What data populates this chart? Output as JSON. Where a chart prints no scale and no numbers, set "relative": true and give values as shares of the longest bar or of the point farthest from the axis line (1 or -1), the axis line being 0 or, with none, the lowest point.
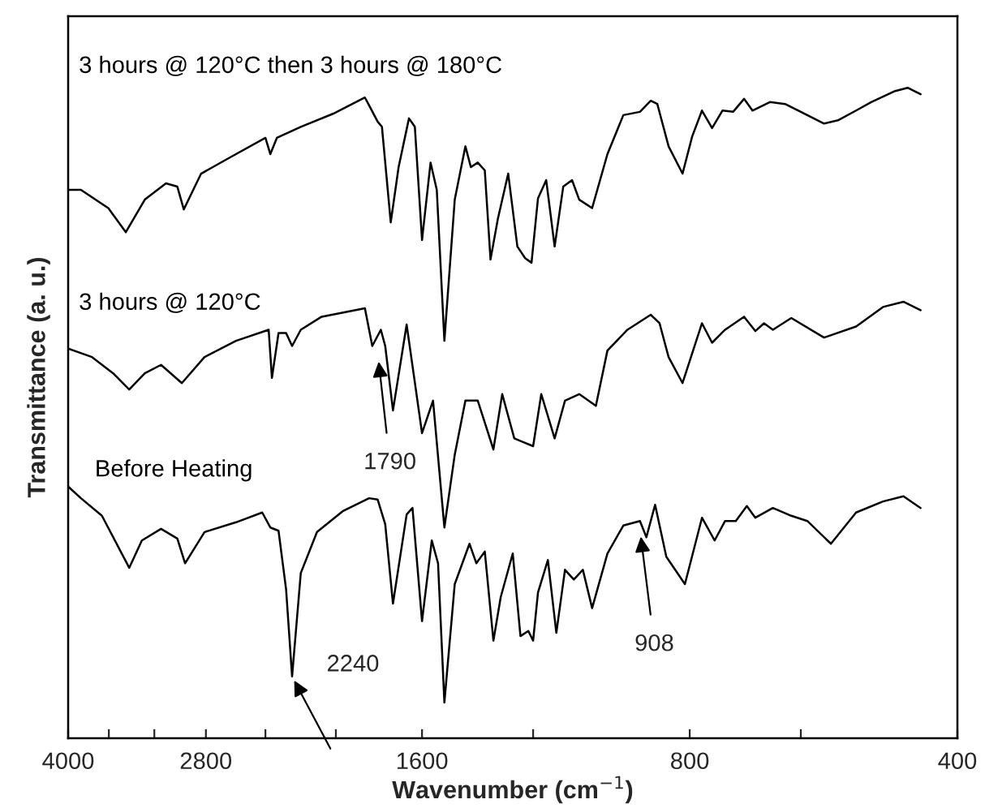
{
  "chart_data": {
    "type": "line",
    "xlabel": "Wavenumber (cm$^{−1}$)",
    "ylabel": "Transmittance (a. u.)",
    "relative": true,
    "log": "x",
    "xlim": [
      4000,
      400
    ],
    "xticks": [
      4000,
      {
        "value": 3600,
        "label": null
      },
      {
        "value": 3200,
        "label": null
      },
      2800,
      {
        "value": 2400,
        "label": null
      },
      {
        "value": 2000,
        "label": null
      },
      1600,
      {
        "value": 1200,
        "label": null
      },
      800,
      {
        "value": 600,
        "label": null
      },
      400
    ],
    "series": [
      {
        "name": "3 hours @ 120°C then 3 hours @ 180°C",
        "color": "#000000",
        "x": [
          4000,
          3870,
          3605,
          3445,
          3280,
          3105,
          3015,
          2965,
          2835,
          2630,
          2400,
          2370,
          2330,
          2190,
          2015,
          1855,
          1835,
          1795,
          1775,
          1735,
          1700,
          1655,
          1630,
          1600,
          1565,
          1540,
          1510,
          1470,
          1430,
          1410,
          1385,
          1360,
          1340,
          1315,
          1280,
          1250,
          1225,
          1205,
          1185,
          1160,
          1135,
          1110,
          1085,
          1065,
          1030,
          990,
          950,
          910,
          885,
          870,
          845,
          815,
          795,
          775,
          755,
          735,
          715,
          695,
          680,
          650,
          625,
          600,
          565,
          545,
          520,
          500,
          470,
          455,
          440
        ],
        "values": [
          0.843,
          0.843,
          0.815,
          0.778,
          0.828,
          0.853,
          0.848,
          0.813,
          0.868,
          0.893,
          0.923,
          0.898,
          0.923,
          0.94,
          0.96,
          0.985,
          0.973,
          0.948,
          0.94,
          0.793,
          0.878,
          0.953,
          0.94,
          0.766,
          0.885,
          0.843,
          0.611,
          0.828,
          0.91,
          0.878,
          0.885,
          0.873,
          0.736,
          0.798,
          0.868,
          0.756,
          0.738,
          0.731,
          0.83,
          0.858,
          0.756,
          0.848,
          0.858,
          0.828,
          0.815,
          0.898,
          0.958,
          0.963,
          0.98,
          0.975,
          0.91,
          0.868,
          0.925,
          0.965,
          0.938,
          0.965,
          0.963,
          0.983,
          0.965,
          0.978,
          0.975,
          0.963,
          0.945,
          0.95,
          0.965,
          0.978,
          0.995,
          1.0,
          0.99
        ]
      },
      {
        "name": "3 hours @ 120°C",
        "color": "#000000",
        "x": [
          4000,
          3760,
          3560,
          3415,
          3280,
          3145,
          2980,
          2810,
          2590,
          2380,
          2360,
          2320,
          2275,
          2240,
          2190,
          2075,
          1855,
          1820,
          1780,
          1760,
          1725,
          1665,
          1600,
          1555,
          1510,
          1470,
          1430,
          1385,
          1330,
          1300,
          1260,
          1235,
          1200,
          1175,
          1135,
          1105,
          1065,
          1020,
          990,
          940,
          885,
          865,
          845,
          815,
          775,
          755,
          730,
          695,
          675,
          660,
          645,
          615,
          565,
          520,
          485,
          460,
          440
        ],
        "values": [
          0.599,
          0.586,
          0.561,
          0.536,
          0.561,
          0.574,
          0.546,
          0.586,
          0.611,
          0.628,
          0.554,
          0.623,
          0.623,
          0.603,
          0.628,
          0.648,
          0.661,
          0.603,
          0.628,
          0.603,
          0.504,
          0.636,
          0.469,
          0.519,
          0.324,
          0.436,
          0.519,
          0.519,
          0.444,
          0.529,
          0.461,
          0.456,
          0.449,
          0.529,
          0.461,
          0.519,
          0.529,
          0.511,
          0.596,
          0.628,
          0.651,
          0.638,
          0.586,
          0.546,
          0.638,
          0.608,
          0.628,
          0.648,
          0.626,
          0.638,
          0.628,
          0.646,
          0.616,
          0.633,
          0.663,
          0.671,
          0.658
        ]
      },
      {
        "name": "Before Heating",
        "color": "#000000",
        "x": [
          4000,
          3870,
          3665,
          3415,
          3305,
          3145,
          3015,
          2955,
          2810,
          2590,
          2420,
          2370,
          2320,
          2275,
          2240,
          2190,
          2100,
          1965,
          1835,
          1795,
          1760,
          1725,
          1665,
          1640,
          1600,
          1560,
          1535,
          1510,
          1470,
          1415,
          1390,
          1360,
          1330,
          1305,
          1265,
          1240,
          1215,
          1200,
          1185,
          1155,
          1130,
          1105,
          1080,
          1055,
          1030,
          990,
          950,
          910,
          895,
          875,
          850,
          810,
          775,
          750,
          730,
          710,
          690,
          675,
          645,
          615,
          590,
          555,
          520,
          485,
          460,
          440
        ],
        "values": [
          0.387,
          0.369,
          0.342,
          0.262,
          0.304,
          0.322,
          0.307,
          0.269,
          0.317,
          0.332,
          0.347,
          0.324,
          0.319,
          0.229,
          0.095,
          0.254,
          0.317,
          0.349,
          0.369,
          0.367,
          0.329,
          0.207,
          0.344,
          0.354,
          0.18,
          0.304,
          0.269,
          0.055,
          0.237,
          0.299,
          0.269,
          0.287,
          0.15,
          0.217,
          0.284,
          0.157,
          0.165,
          0.15,
          0.224,
          0.274,
          0.162,
          0.259,
          0.244,
          0.259,
          0.2,
          0.284,
          0.327,
          0.334,
          0.309,
          0.359,
          0.279,
          0.237,
          0.339,
          0.304,
          0.334,
          0.334,
          0.357,
          0.339,
          0.354,
          0.342,
          0.334,
          0.299,
          0.347,
          0.364,
          0.372,
          0.354
        ]
      }
    ],
    "annotations": [
      {
        "text": "1790",
        "x": 1790,
        "y": 0.579
      },
      {
        "text": "2240",
        "x": 2240,
        "y": 0.095
      },
      {
        "text": "908",
        "x": 908,
        "y": 0.31
      }
    ]
  }
}
